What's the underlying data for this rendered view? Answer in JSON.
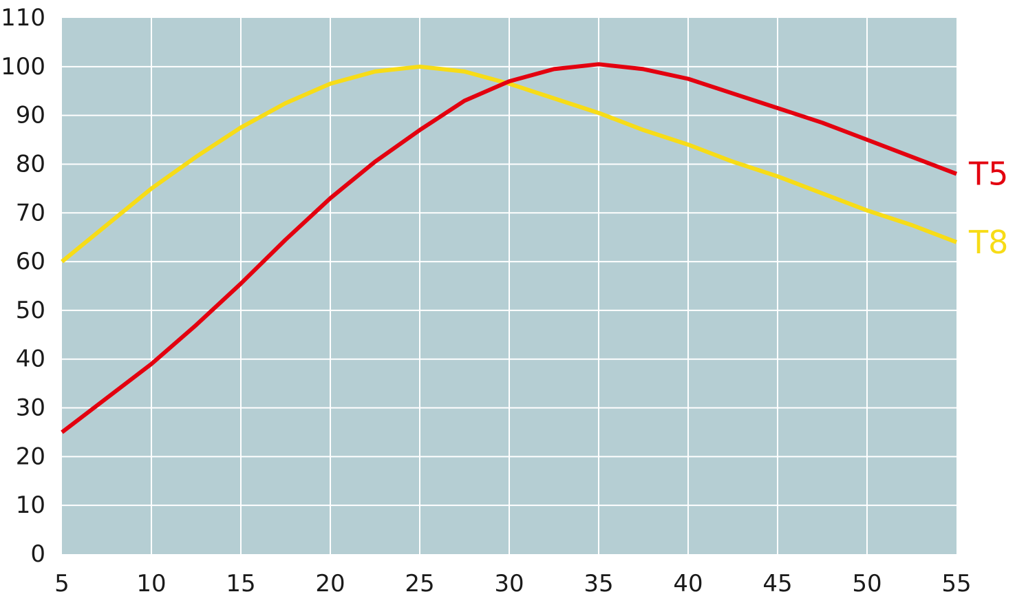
{
  "colors": {
    "plot_background": "#b5ced3",
    "grid": "#ffffff",
    "T5": "#e3000f",
    "T8": "#f7dc17"
  },
  "chart_data": {
    "type": "line",
    "title": "",
    "xlabel": "",
    "ylabel": "",
    "xlim": [
      5,
      55
    ],
    "ylim": [
      0,
      110
    ],
    "x_ticks": [
      "5",
      "10",
      "15",
      "20",
      "25",
      "30",
      "35",
      "40",
      "45",
      "50",
      "55"
    ],
    "y_ticks": [
      "0",
      "10",
      "20",
      "30",
      "40",
      "50",
      "60",
      "70",
      "80",
      "90",
      "100",
      "110"
    ],
    "grid": true,
    "x": [
      5,
      7.5,
      10,
      12.5,
      15,
      17.5,
      20,
      22.5,
      25,
      27.5,
      30,
      32.5,
      35,
      37.5,
      40,
      42.5,
      45,
      47.5,
      50,
      52.5,
      55
    ],
    "series": [
      {
        "name": "T5",
        "color": "#e3000f",
        "values": [
          25,
          32,
          39,
          47,
          55.5,
          64.5,
          73,
          80.5,
          87,
          93,
          97,
          99.5,
          100.5,
          99.5,
          97.5,
          94.5,
          91.5,
          88.5,
          85,
          81.5,
          78
        ]
      },
      {
        "name": "T8",
        "color": "#f7dc17",
        "values": [
          60,
          67.5,
          75,
          81.5,
          87.5,
          92.5,
          96.5,
          99,
          100,
          99,
          96.5,
          93.5,
          90.5,
          87,
          84,
          80.5,
          77.5,
          74,
          70.5,
          67.5,
          64
        ]
      }
    ]
  }
}
